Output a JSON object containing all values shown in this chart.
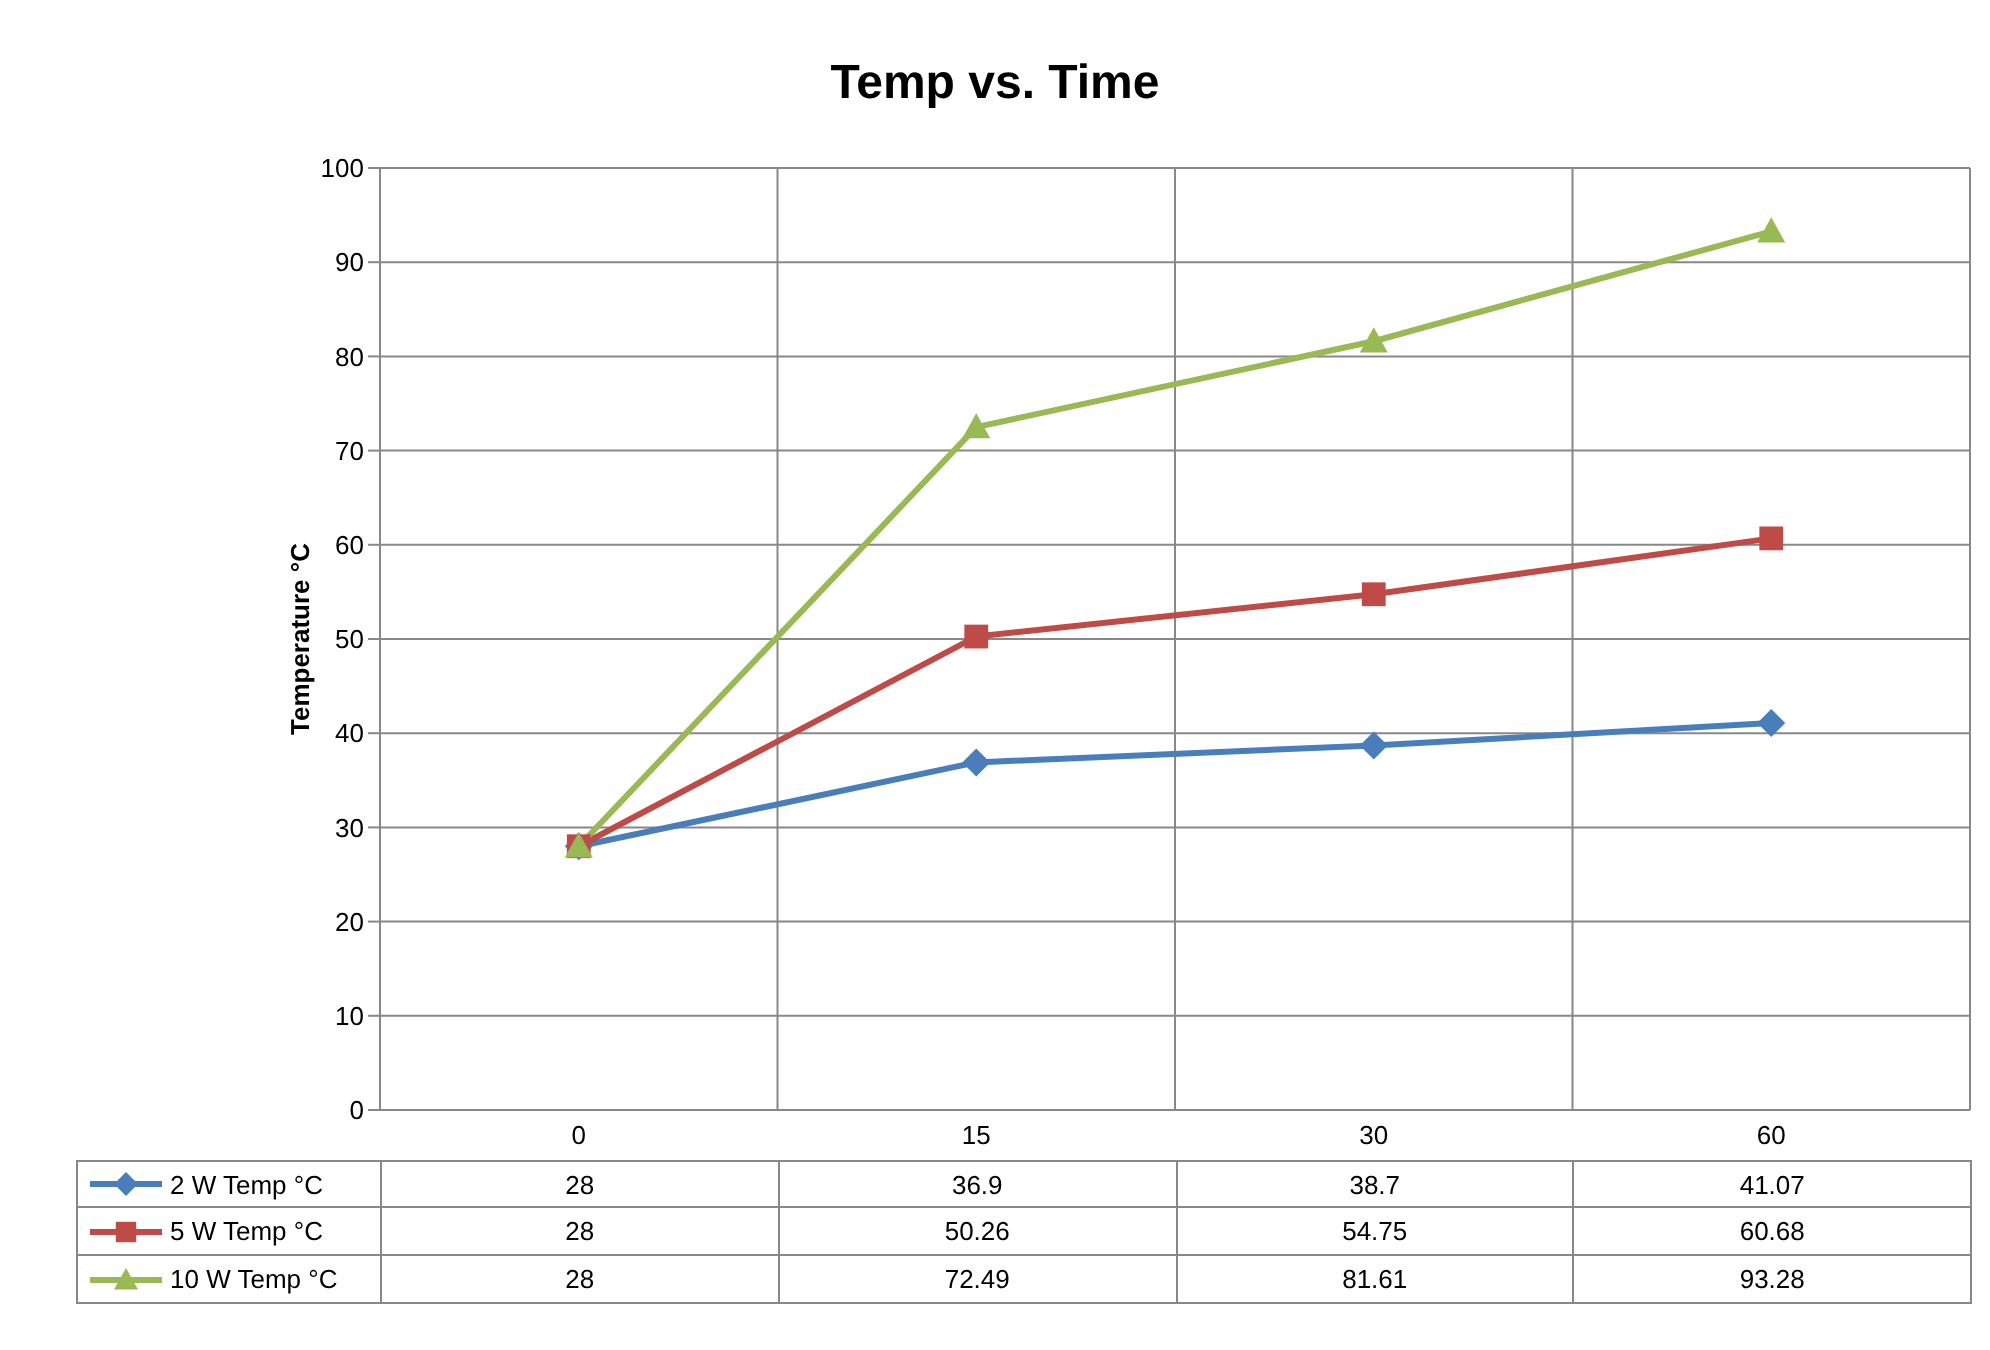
{
  "chart_data": {
    "type": "line",
    "title": "Temp vs. Time",
    "ylabel": "Temperature °C",
    "categories": [
      "0",
      "15",
      "30",
      "60"
    ],
    "series": [
      {
        "name": "2 W Temp °C",
        "color": "#4a7ebb",
        "marker": "diamond",
        "values": [
          28,
          36.9,
          38.7,
          41.07
        ]
      },
      {
        "name": "5 W Temp °C",
        "color": "#be4b48",
        "marker": "square",
        "values": [
          28,
          50.26,
          54.75,
          60.68
        ]
      },
      {
        "name": "10 W Temp °C",
        "color": "#98b954",
        "marker": "triangle",
        "values": [
          28,
          72.49,
          81.61,
          93.28
        ]
      }
    ],
    "ylim": [
      0,
      100
    ],
    "yticks": [
      0,
      10,
      20,
      30,
      40,
      50,
      60,
      70,
      80,
      90,
      100
    ],
    "grid": true,
    "legend": "bottom",
    "data_labels": true
  }
}
